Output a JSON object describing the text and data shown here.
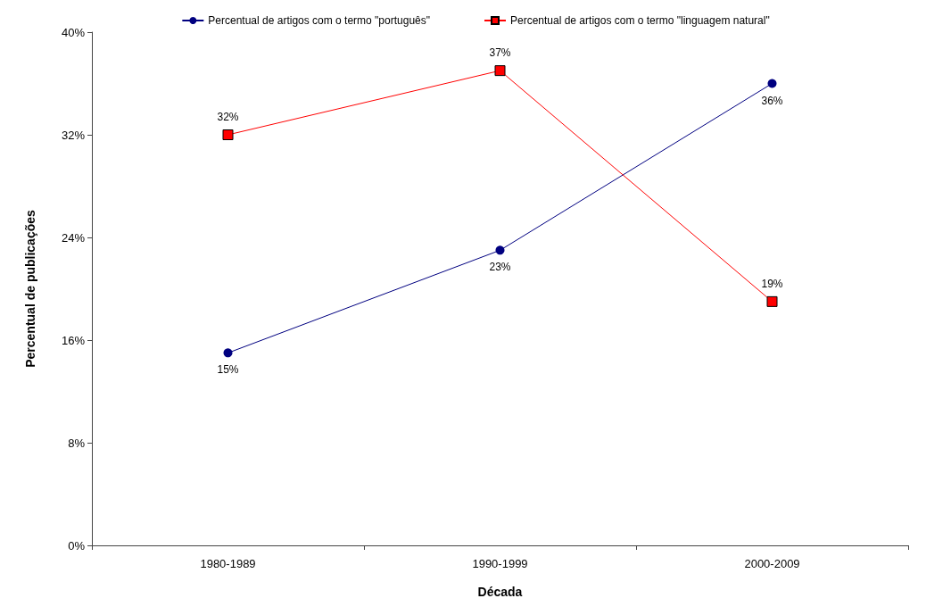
{
  "chart_data": {
    "type": "line",
    "xlabel": "Década",
    "ylabel": "Percentual de publicações",
    "categories": [
      "1980-1989",
      "1990-1999",
      "2000-2009"
    ],
    "series": [
      {
        "name": "Percentual de artigos com o termo \"português\"",
        "color": "#000080",
        "marker": "circle",
        "values": [
          15,
          23,
          36
        ],
        "value_labels": [
          "15%",
          "23%",
          "36%"
        ]
      },
      {
        "name": "Percentual de artigos com o termo \"linguagem natural\"",
        "color": "#ff0000",
        "marker": "square",
        "values": [
          32,
          37,
          19
        ],
        "value_labels": [
          "32%",
          "37%",
          "19%"
        ]
      }
    ],
    "ylim": [
      0,
      40
    ],
    "yticks": [
      {
        "value": 0,
        "label": "0%"
      },
      {
        "value": 8,
        "label": "8%"
      },
      {
        "value": 16,
        "label": "16%"
      },
      {
        "value": 24,
        "label": "24%"
      },
      {
        "value": 32,
        "label": "32%"
      },
      {
        "value": 40,
        "label": "40%"
      }
    ],
    "grid": false,
    "legend": "top"
  }
}
